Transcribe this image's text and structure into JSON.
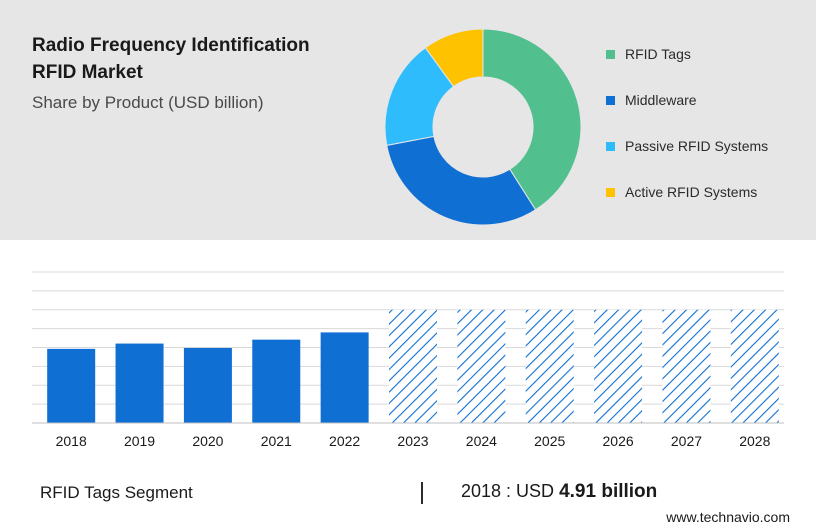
{
  "header": {
    "title_line1": "Radio Frequency Identification",
    "title_line2": "RFID Market",
    "subtitle": "Share by Product (USD billion)"
  },
  "footer": {
    "segment_label": "RFID Tags Segment",
    "year_text": "2018 : USD",
    "value_text": "4.91 billion",
    "source": "www.technavio.com"
  },
  "chart_data": [
    {
      "type": "pie",
      "subtype": "donut",
      "labels": [
        "RFID Tags",
        "Middleware",
        "Passive RFID Systems",
        "Active RFID Systems"
      ],
      "values": [
        41,
        31,
        18,
        10
      ],
      "colors": [
        "#52c08e",
        "#0f6fd2",
        "#2ebcfc",
        "#fec200"
      ],
      "legend_position": "right"
    },
    {
      "type": "bar",
      "categories": [
        "2018",
        "2019",
        "2020",
        "2021",
        "2022",
        "2023",
        "2024",
        "2025",
        "2026",
        "2027",
        "2028"
      ],
      "values": [
        4.91,
        5.26,
        4.97,
        5.52,
        6.0,
        7.5,
        7.5,
        7.5,
        7.5,
        7.5,
        7.5
      ],
      "forecast_from": "2023",
      "ylim": [
        0,
        10
      ],
      "grid": true,
      "colors": {
        "actual": "#0f6fd2",
        "forecast_hatch": "#0f6fd2"
      }
    }
  ]
}
